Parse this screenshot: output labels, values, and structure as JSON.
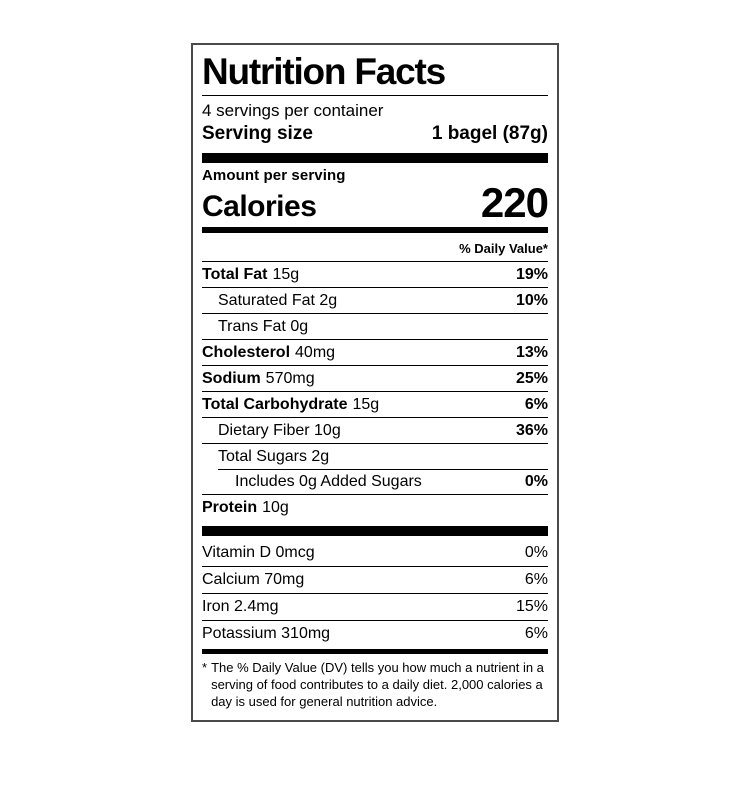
{
  "label": {
    "title": "Nutrition Facts",
    "servings_per_container": "4 servings per container",
    "serving_size_label": "Serving size",
    "serving_size_value": "1 bagel (87g)",
    "amount_per_serving": "Amount per serving",
    "calories_label": "Calories",
    "calories_value": "220",
    "daily_value_header": "% Daily Value*",
    "footnote_marker": "*",
    "footnote": "The % Daily Value (DV) tells you how much a nutrient in a serving of food contributes to a daily diet. 2,000 calories a day is used for general nutrition advice."
  },
  "rows": [
    {
      "name": "Total Fat",
      "amount": "15g",
      "dv": "19%"
    },
    {
      "name": "",
      "amount": "Saturated Fat 2g",
      "dv": "10%"
    },
    {
      "name": "",
      "amount": "Trans Fat 0g",
      "dv": ""
    },
    {
      "name": "Cholesterol",
      "amount": "40mg",
      "dv": "13%"
    },
    {
      "name": "Sodium",
      "amount": "570mg",
      "dv": "25%"
    },
    {
      "name": "Total Carbohydrate",
      "amount": "15g",
      "dv": "6%"
    },
    {
      "name": "",
      "amount": "Dietary Fiber 10g",
      "dv": "36%"
    },
    {
      "name": "",
      "amount": "Total Sugars 2g",
      "dv": ""
    },
    {
      "name": "",
      "amount": "Includes 0g Added Sugars",
      "dv": "0%"
    },
    {
      "name": "Protein",
      "amount": "10g",
      "dv": ""
    }
  ],
  "vitamins": [
    {
      "label": "Vitamin D 0mcg",
      "dv": "0%"
    },
    {
      "label": "Calcium 70mg",
      "dv": "6%"
    },
    {
      "label": "Iron 2.4mg",
      "dv": "15%"
    },
    {
      "label": "Potassium 310mg",
      "dv": "6%"
    }
  ],
  "colors": {
    "text": "#000000",
    "background": "#ffffff",
    "border": "#4a4a4a"
  }
}
